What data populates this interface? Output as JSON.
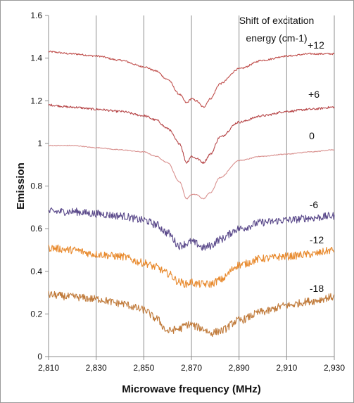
{
  "chart_data": {
    "type": "line",
    "title": "",
    "xlabel": "Microwave frequency (MHz)",
    "ylabel": "Emission",
    "xlim": [
      2810,
      2930
    ],
    "ylim": [
      0,
      1.6
    ],
    "x_ticks": [
      2810,
      2830,
      2850,
      2870,
      2890,
      2910,
      2930
    ],
    "x_tick_labels": [
      "2,810",
      "2,830",
      "2,850",
      "2,870",
      "2,890",
      "2,910",
      "2,930"
    ],
    "y_ticks": [
      0,
      0.2,
      0.4,
      0.6,
      0.8,
      1,
      1.2,
      1.4,
      1.6
    ],
    "y_tick_labels": [
      "0",
      "0.2",
      "0.4",
      "0.6",
      "0.8",
      "1",
      "1.2",
      "1.4",
      "1.6"
    ],
    "grid": "vertical",
    "legend_title": [
      "Shift of excitation",
      "energy (cm-1)"
    ],
    "x": [
      2810,
      2820,
      2830,
      2840,
      2850,
      2855,
      2860,
      2865,
      2868,
      2870,
      2872,
      2875,
      2878,
      2882,
      2890,
      2900,
      2910,
      2920,
      2930
    ],
    "series": [
      {
        "name": "+12",
        "color": "#c0504d",
        "noise": 0.004,
        "values": [
          1.43,
          1.42,
          1.41,
          1.39,
          1.36,
          1.34,
          1.3,
          1.23,
          1.19,
          1.21,
          1.2,
          1.17,
          1.21,
          1.28,
          1.35,
          1.39,
          1.41,
          1.42,
          1.42
        ]
      },
      {
        "name": "+6",
        "color": "#b7484a",
        "noise": 0.005,
        "values": [
          1.18,
          1.17,
          1.16,
          1.15,
          1.13,
          1.11,
          1.07,
          1.0,
          0.91,
          0.94,
          0.93,
          0.91,
          0.95,
          1.03,
          1.1,
          1.13,
          1.15,
          1.16,
          1.17
        ]
      },
      {
        "name": "0",
        "color": "#d9918f",
        "noise": 0.002,
        "values": [
          0.99,
          0.99,
          0.98,
          0.97,
          0.96,
          0.94,
          0.91,
          0.82,
          0.74,
          0.76,
          0.76,
          0.74,
          0.77,
          0.84,
          0.92,
          0.94,
          0.95,
          0.96,
          0.97
        ]
      },
      {
        "name": "-6",
        "color": "#5b4a8b",
        "noise": 0.018,
        "values": [
          0.68,
          0.68,
          0.67,
          0.66,
          0.64,
          0.62,
          0.58,
          0.52,
          0.53,
          0.54,
          0.53,
          0.51,
          0.52,
          0.55,
          0.6,
          0.63,
          0.64,
          0.65,
          0.66
        ]
      },
      {
        "name": "-12",
        "color": "#e88a2e",
        "noise": 0.018,
        "values": [
          0.51,
          0.5,
          0.48,
          0.47,
          0.44,
          0.42,
          0.39,
          0.35,
          0.34,
          0.35,
          0.34,
          0.34,
          0.34,
          0.36,
          0.43,
          0.46,
          0.47,
          0.48,
          0.5
        ]
      },
      {
        "name": "-18",
        "color": "#c07a3a",
        "noise": 0.018,
        "values": [
          0.29,
          0.28,
          0.27,
          0.25,
          0.22,
          0.18,
          0.12,
          0.13,
          0.15,
          0.15,
          0.14,
          0.13,
          0.11,
          0.12,
          0.17,
          0.21,
          0.24,
          0.26,
          0.28
        ]
      }
    ]
  }
}
